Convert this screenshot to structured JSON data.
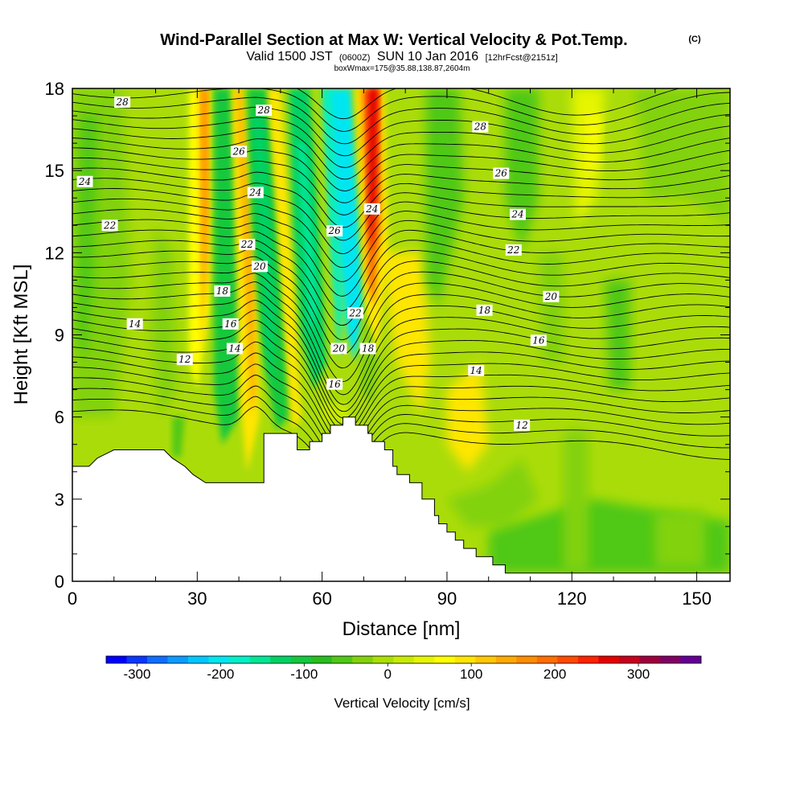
{
  "title": {
    "main": "Wind-Parallel Section at Max W: Vertical Velocity & Pot.Temp.",
    "main_suffix": "(C)",
    "valid_prefix": "Valid 1500 JST",
    "valid_z": "(0600Z)",
    "valid_date": "SUN 10 Jan 2016",
    "valid_fcst": "[12hrFcst@2151z]",
    "boxinfo": "boxWmax=175@35.88,138.87,2604m"
  },
  "chart_data": {
    "type": "heatmap",
    "xlabel": "Distance [nm]",
    "ylabel": "Height [Kft MSL]",
    "xlim": [
      0,
      158
    ],
    "ylim": [
      0,
      18
    ],
    "x_ticks": [
      "0",
      "30",
      "60",
      "90",
      "120",
      "150"
    ],
    "y_ticks": [
      "0",
      "3",
      "6",
      "9",
      "12",
      "15",
      "18"
    ],
    "colorbar": {
      "label": "Vertical Velocity [cm/s]",
      "ticks": [
        "-300",
        "-200",
        "-100",
        "0",
        "100",
        "200",
        "300"
      ],
      "range": [
        -337,
        375
      ],
      "colors": [
        "#0000ff",
        "#0a37ff",
        "#0f6eff",
        "#0c9bff",
        "#00c8ff",
        "#00e6f0",
        "#00f0c8",
        "#00e696",
        "#00d264",
        "#14c83c",
        "#28be1e",
        "#50c814",
        "#82d20a",
        "#aae000",
        "#c8eb00",
        "#e6f500",
        "#ffff00",
        "#ffe600",
        "#ffc800",
        "#ffaa00",
        "#ff8c00",
        "#ff6e00",
        "#ff4b00",
        "#ff2300",
        "#e60000",
        "#c8001e",
        "#a0003c",
        "#820064",
        "#640096"
      ]
    },
    "contour_labels": [
      "12",
      "14",
      "16",
      "18",
      "20",
      "22",
      "24",
      "26",
      "28"
    ],
    "series": [
      {
        "type": "terrain",
        "x": [
          0,
          4,
          6,
          10,
          22,
          24,
          27,
          29,
          32,
          46,
          46,
          54,
          54,
          57,
          57,
          60,
          60,
          62,
          62,
          65,
          65,
          68,
          68,
          71,
          71,
          72,
          72,
          75,
          75,
          77,
          77,
          78,
          78,
          81,
          81,
          84,
          84,
          87,
          87,
          88,
          88,
          90,
          90,
          92,
          92,
          94,
          94,
          97,
          97,
          101,
          101,
          104,
          104,
          158
        ],
        "y": [
          4.2,
          4.2,
          4.5,
          4.8,
          4.8,
          4.5,
          4.2,
          3.9,
          3.6,
          3.6,
          5.4,
          5.4,
          4.8,
          4.8,
          5.1,
          5.1,
          5.4,
          5.4,
          5.7,
          5.7,
          6.0,
          6.0,
          5.7,
          5.7,
          5.4,
          5.4,
          5.1,
          5.1,
          4.8,
          4.8,
          4.2,
          4.2,
          3.9,
          3.9,
          3.6,
          3.6,
          3.0,
          3.0,
          2.4,
          2.4,
          2.1,
          2.1,
          1.8,
          1.8,
          1.5,
          1.5,
          1.2,
          1.2,
          0.9,
          0.9,
          0.6,
          0.6,
          0.3,
          0.3
        ]
      }
    ]
  }
}
